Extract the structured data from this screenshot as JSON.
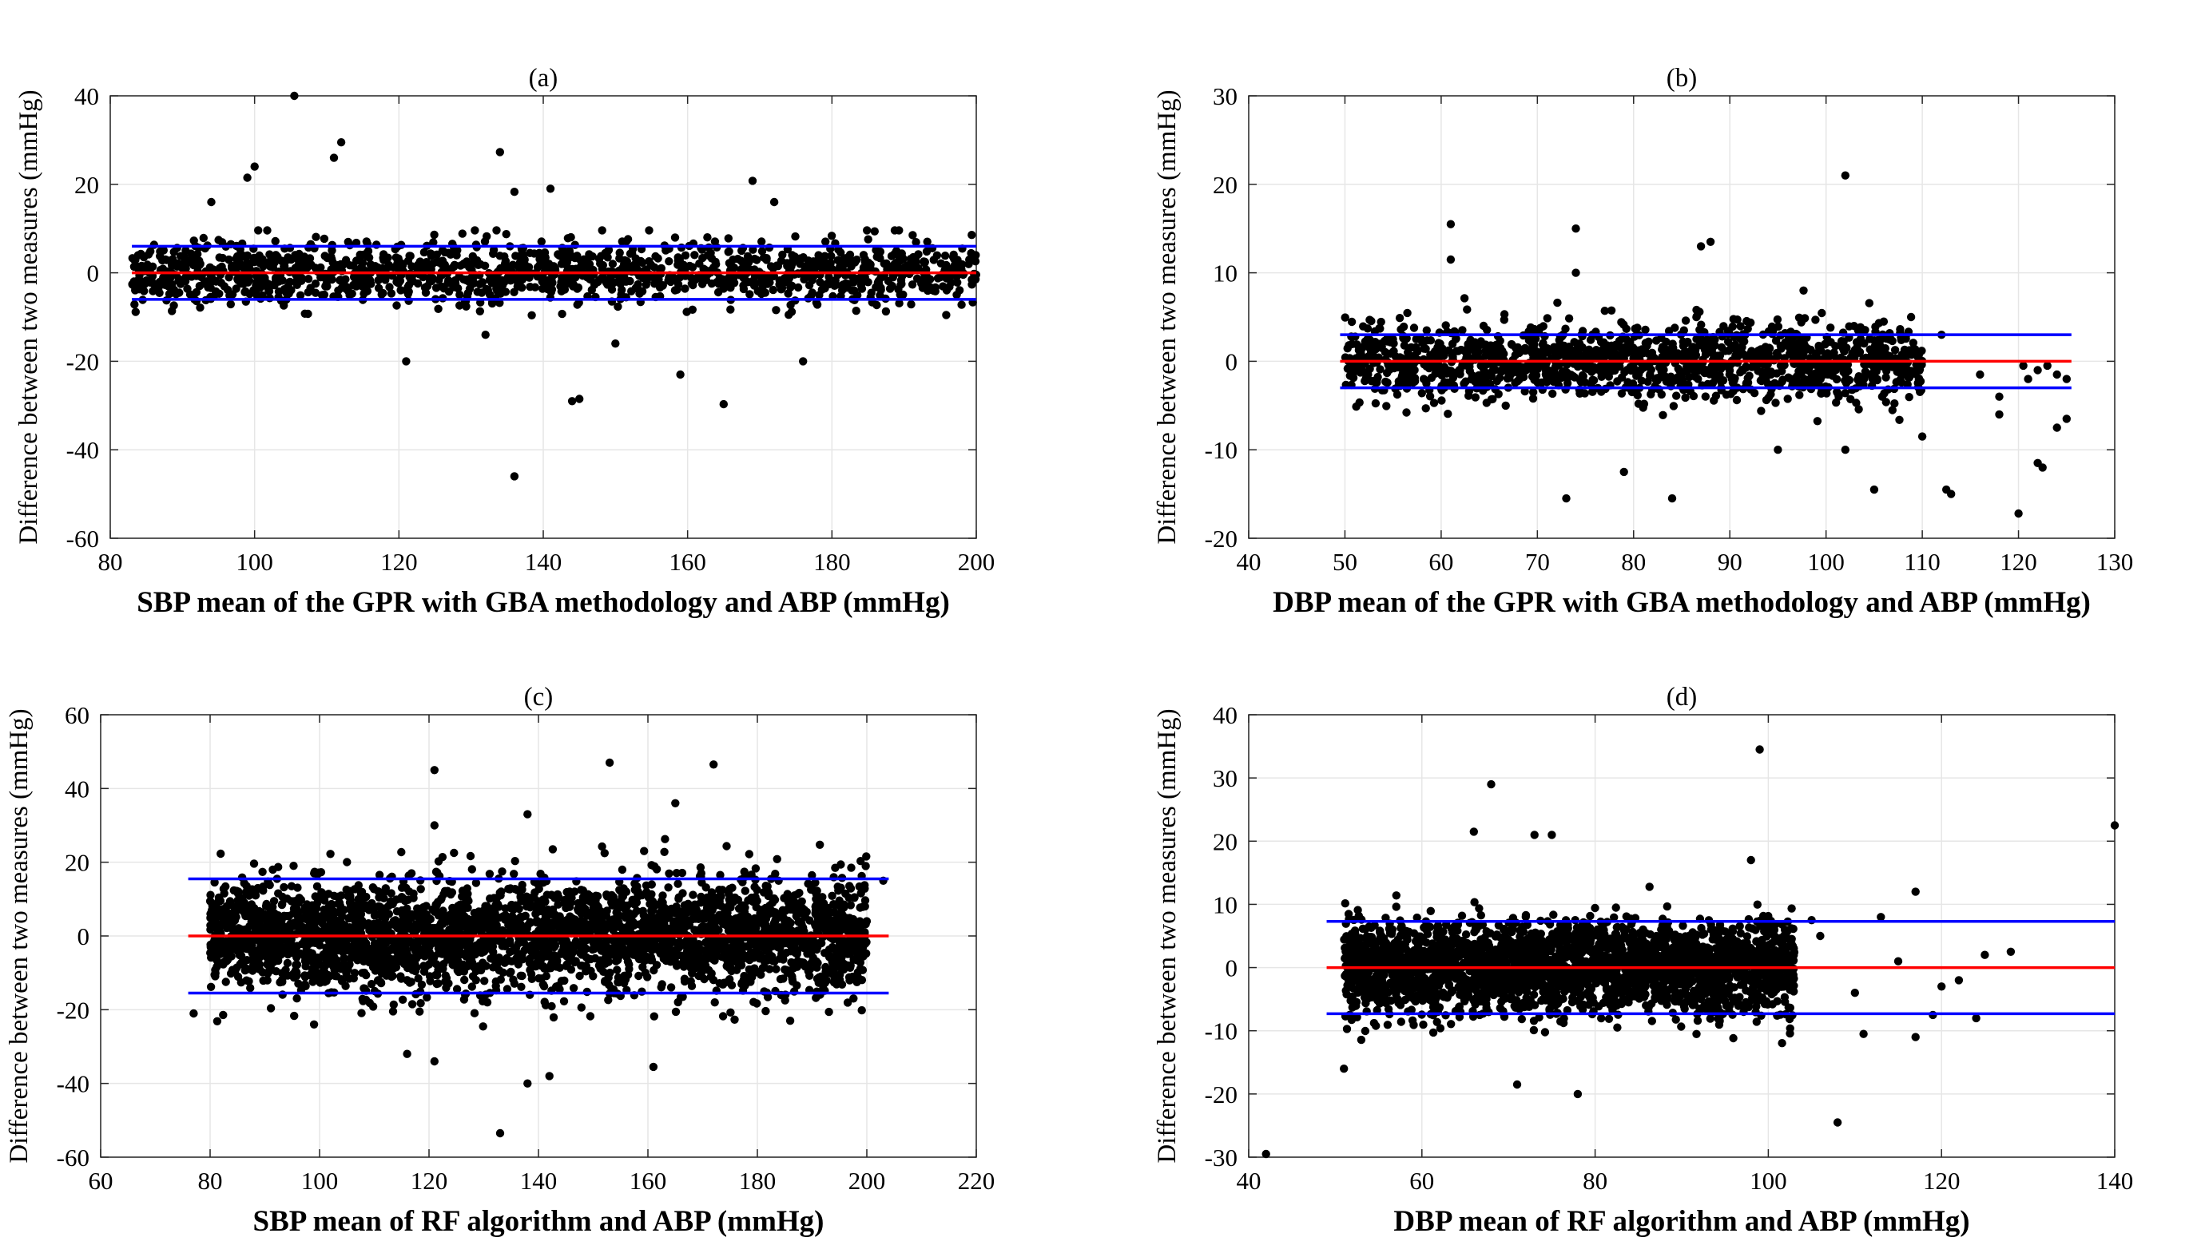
{
  "figure": {
    "background": "#ffffff"
  },
  "colors": {
    "points": "#000000",
    "mean_line": "#ff0000",
    "limit_lines": "#0000ff",
    "grid": "#e6e6e6"
  },
  "chart_data": [
    {
      "type": "scatter",
      "title": "(a)",
      "xlabel": "SBP mean of the GPR with GBA methodology and ABP (mmHg)",
      "ylabel": "Difference between two measures (mmHg)",
      "xlim": [
        80,
        200
      ],
      "ylim": [
        -60,
        40
      ],
      "xticks": [
        80,
        100,
        120,
        140,
        160,
        180,
        200
      ],
      "yticks": [
        -60,
        -40,
        -20,
        0,
        20,
        40
      ],
      "grid": true,
      "mean_line": {
        "y": 0,
        "x": [
          83,
          200
        ]
      },
      "limit_lines": [
        {
          "y": 6,
          "x": [
            83,
            200
          ]
        },
        {
          "y": -6,
          "x": [
            83,
            200
          ]
        }
      ],
      "cloud": {
        "x": [
          83,
          200
        ],
        "y": [
          -6,
          6
        ],
        "n": 1400,
        "sd": 3.5
      },
      "outliers": [
        [
          105.5,
          40
        ],
        [
          112,
          29.5
        ],
        [
          134,
          27.3
        ],
        [
          111,
          26
        ],
        [
          100,
          24
        ],
        [
          99,
          21.5
        ],
        [
          169,
          20.8
        ],
        [
          141,
          19
        ],
        [
          136,
          18.3
        ],
        [
          172,
          16
        ],
        [
          94,
          16
        ],
        [
          121,
          -20
        ],
        [
          136,
          -46
        ],
        [
          144,
          -29
        ],
        [
          145,
          -28.5
        ],
        [
          159,
          -23
        ],
        [
          165,
          -29.7
        ],
        [
          176,
          -20
        ],
        [
          150,
          -16
        ],
        [
          132,
          -14
        ]
      ]
    },
    {
      "type": "scatter",
      "title": "(b)",
      "xlabel": "DBP mean of the GPR with GBA methodology and ABP (mmHg)",
      "ylabel": "Difference between two measures (mmHg)",
      "xlim": [
        40,
        130
      ],
      "ylim": [
        -20,
        30
      ],
      "xticks": [
        40,
        50,
        60,
        70,
        80,
        90,
        100,
        110,
        120,
        130
      ],
      "yticks": [
        -20,
        -10,
        0,
        10,
        20,
        30
      ],
      "grid": true,
      "mean_line": {
        "y": 0,
        "x": [
          49.5,
          125.5
        ]
      },
      "limit_lines": [
        {
          "y": 3,
          "x": [
            49.5,
            125.5
          ]
        },
        {
          "y": -3,
          "x": [
            49.5,
            125.5
          ]
        }
      ],
      "cloud": {
        "x": [
          50,
          110
        ],
        "y": [
          -5,
          5
        ],
        "n": 1400,
        "sd": 2.2
      },
      "outliers": [
        [
          102,
          21
        ],
        [
          61,
          15.5
        ],
        [
          74,
          15
        ],
        [
          88,
          13.5
        ],
        [
          87,
          13
        ],
        [
          61,
          11.5
        ],
        [
          74,
          10
        ],
        [
          73,
          -15.5
        ],
        [
          84,
          -15.5
        ],
        [
          79,
          -12.5
        ],
        [
          95,
          -10
        ],
        [
          102,
          -10
        ],
        [
          105,
          -14.5
        ],
        [
          113,
          -15
        ],
        [
          112.5,
          -14.5
        ],
        [
          120,
          -17.2
        ],
        [
          122,
          -11.5
        ],
        [
          122.5,
          -12
        ],
        [
          124,
          -7.5
        ],
        [
          125,
          -6.5
        ],
        [
          118,
          -6
        ],
        [
          110,
          -8.5
        ],
        [
          112,
          3
        ],
        [
          122,
          -1
        ],
        [
          121,
          -2
        ],
        [
          123,
          -0.5
        ],
        [
          124,
          -1.5
        ],
        [
          120.5,
          -0.5
        ],
        [
          125,
          -2
        ],
        [
          116,
          -1.5
        ],
        [
          118,
          -4
        ]
      ]
    },
    {
      "type": "scatter",
      "title": "(c)",
      "xlabel": "SBP mean of RF algorithm and ABP (mmHg)",
      "ylabel": "Difference between two measures (mmHg)",
      "xlim": [
        60,
        220
      ],
      "ylim": [
        -60,
        60
      ],
      "xticks": [
        60,
        80,
        100,
        120,
        140,
        160,
        180,
        200,
        220
      ],
      "yticks": [
        -60,
        -40,
        -20,
        0,
        20,
        40,
        60
      ],
      "grid": true,
      "mean_line": {
        "y": 0,
        "x": [
          76,
          204
        ]
      },
      "limit_lines": [
        {
          "y": 15.5,
          "x": [
            76,
            204
          ]
        },
        {
          "y": -15.5,
          "x": [
            76,
            204
          ]
        }
      ],
      "cloud": {
        "x": [
          80,
          200
        ],
        "y": [
          -18,
          18
        ],
        "n": 3200,
        "sd": 7.5
      },
      "outliers": [
        [
          153,
          47
        ],
        [
          172,
          46.5
        ],
        [
          121,
          45
        ],
        [
          165,
          36
        ],
        [
          121,
          30
        ],
        [
          138,
          33
        ],
        [
          133,
          -53.5
        ],
        [
          138,
          -40
        ],
        [
          142,
          -38
        ],
        [
          161,
          -35.5
        ],
        [
          121,
          -34
        ],
        [
          77,
          -21
        ],
        [
          203,
          15
        ],
        [
          186,
          -23
        ],
        [
          116,
          -32
        ],
        [
          99,
          -24
        ]
      ]
    },
    {
      "type": "scatter",
      "title": "(d)",
      "xlabel": "DBP mean of RF algorithm and ABP (mmHg)",
      "ylabel": "Difference between two measures (mmHg)",
      "xlim": [
        40,
        140
      ],
      "ylim": [
        -30,
        40
      ],
      "xticks": [
        40,
        60,
        80,
        100,
        120,
        140
      ],
      "yticks": [
        -30,
        -20,
        -10,
        0,
        10,
        20,
        30,
        40
      ],
      "grid": true,
      "mean_line": {
        "y": 0,
        "x": [
          49,
          140
        ]
      },
      "limit_lines": [
        {
          "y": 7.3,
          "x": [
            49,
            140
          ]
        },
        {
          "y": -7.3,
          "x": [
            49,
            140
          ]
        }
      ],
      "cloud": {
        "x": [
          51,
          103
        ],
        "y": [
          -8,
          8
        ],
        "n": 2800,
        "sd": 3.6
      },
      "outliers": [
        [
          99,
          34.5
        ],
        [
          68,
          29
        ],
        [
          140,
          22.5
        ],
        [
          73,
          21
        ],
        [
          66,
          21.5
        ],
        [
          75,
          21
        ],
        [
          98,
          17
        ],
        [
          117,
          12
        ],
        [
          42,
          -29.5
        ],
        [
          108,
          -24.5
        ],
        [
          78,
          -20
        ],
        [
          71,
          -18.5
        ],
        [
          51,
          -16
        ],
        [
          117,
          -11
        ],
        [
          111,
          -10.5
        ],
        [
          124,
          -8
        ],
        [
          120,
          -3
        ],
        [
          122,
          -2
        ],
        [
          125,
          2
        ],
        [
          128,
          2.5
        ],
        [
          113,
          8
        ],
        [
          105,
          7.5
        ],
        [
          119,
          -7.5
        ],
        [
          110,
          -4
        ],
        [
          106,
          5
        ],
        [
          115,
          1
        ]
      ]
    }
  ]
}
